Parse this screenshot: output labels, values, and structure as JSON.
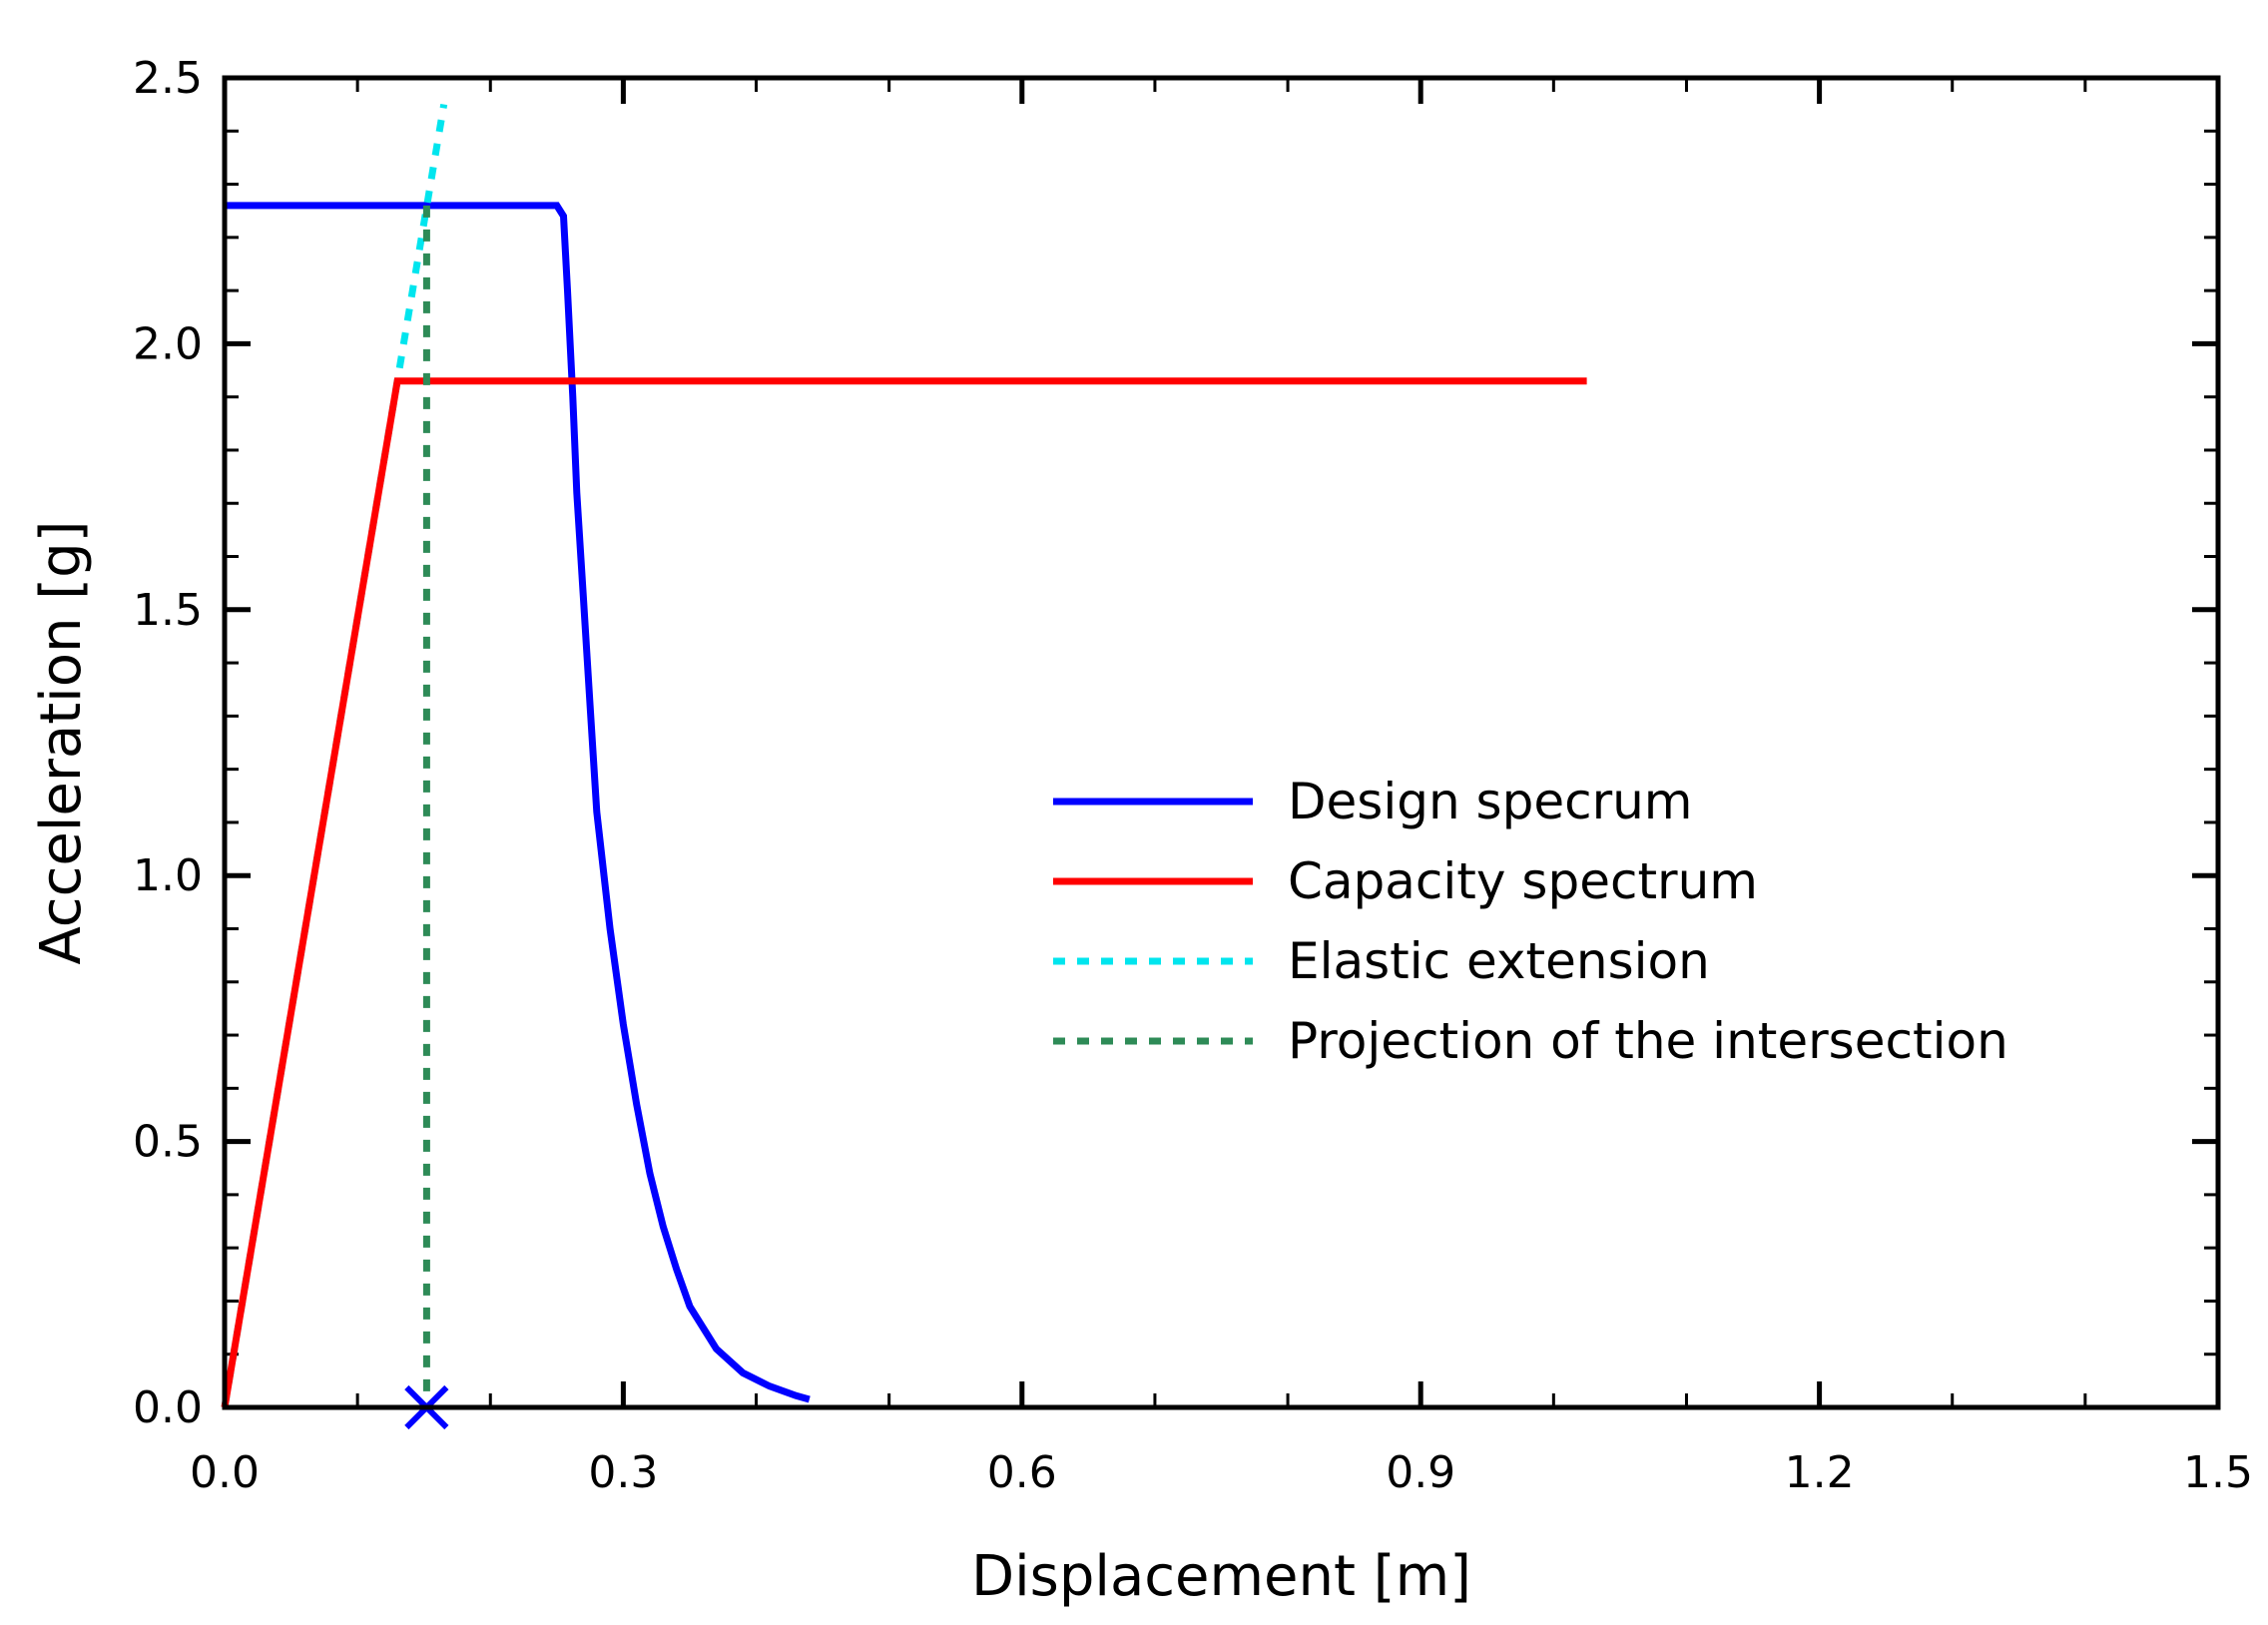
{
  "chart_data": {
    "type": "line",
    "title": "",
    "xlabel": "Displacement [m]",
    "ylabel": "Acceleration [g]",
    "xlim": [
      0.0,
      1.5
    ],
    "ylim": [
      0.0,
      2.5
    ],
    "xticks": [
      0.0,
      0.3,
      0.6,
      0.9,
      1.2,
      1.5
    ],
    "xtick_labels": [
      "0.0",
      "0.3",
      "0.6",
      "0.9",
      "1.2",
      "1.5"
    ],
    "yticks": [
      0.0,
      0.5,
      1.0,
      1.5,
      2.0,
      2.5
    ],
    "ytick_labels": [
      "0.0",
      "0.5",
      "1.0",
      "1.5",
      "2.0",
      "2.5"
    ],
    "x_minor_step": 0.1,
    "y_minor_step": 0.1,
    "grid": false,
    "legend_position": "center-right",
    "series": [
      {
        "name": "Design specrum",
        "color": "#0000ff",
        "style": "solid",
        "x": [
          0.0,
          0.25,
          0.255,
          0.258,
          0.262,
          0.265,
          0.27,
          0.275,
          0.28,
          0.29,
          0.3,
          0.31,
          0.32,
          0.33,
          0.34,
          0.35,
          0.37,
          0.39,
          0.41,
          0.43,
          0.44
        ],
        "y": [
          2.26,
          2.26,
          2.24,
          2.1,
          1.9,
          1.72,
          1.52,
          1.32,
          1.12,
          0.9,
          0.72,
          0.57,
          0.44,
          0.34,
          0.26,
          0.19,
          0.11,
          0.065,
          0.04,
          0.022,
          0.015
        ]
      },
      {
        "name": "Capacity spectrum",
        "color": "#ff0000",
        "style": "solid",
        "x": [
          0.0,
          0.13,
          1.025
        ],
        "y": [
          0.0,
          1.93,
          1.93
        ]
      },
      {
        "name": "Elastic extension",
        "color": "#00e5ee",
        "style": "dotted",
        "x": [
          0.0,
          0.165
        ],
        "y": [
          0.0,
          2.45
        ]
      },
      {
        "name": "Projection of the intersection",
        "color": "#2e8b57",
        "style": "dotted",
        "x": [
          0.152,
          0.152
        ],
        "y": [
          2.26,
          0.0
        ]
      }
    ],
    "markers": [
      {
        "name": "Performance point",
        "x": 0.152,
        "y": 0.0,
        "symbol": "x",
        "color": "#0000ff"
      }
    ]
  }
}
